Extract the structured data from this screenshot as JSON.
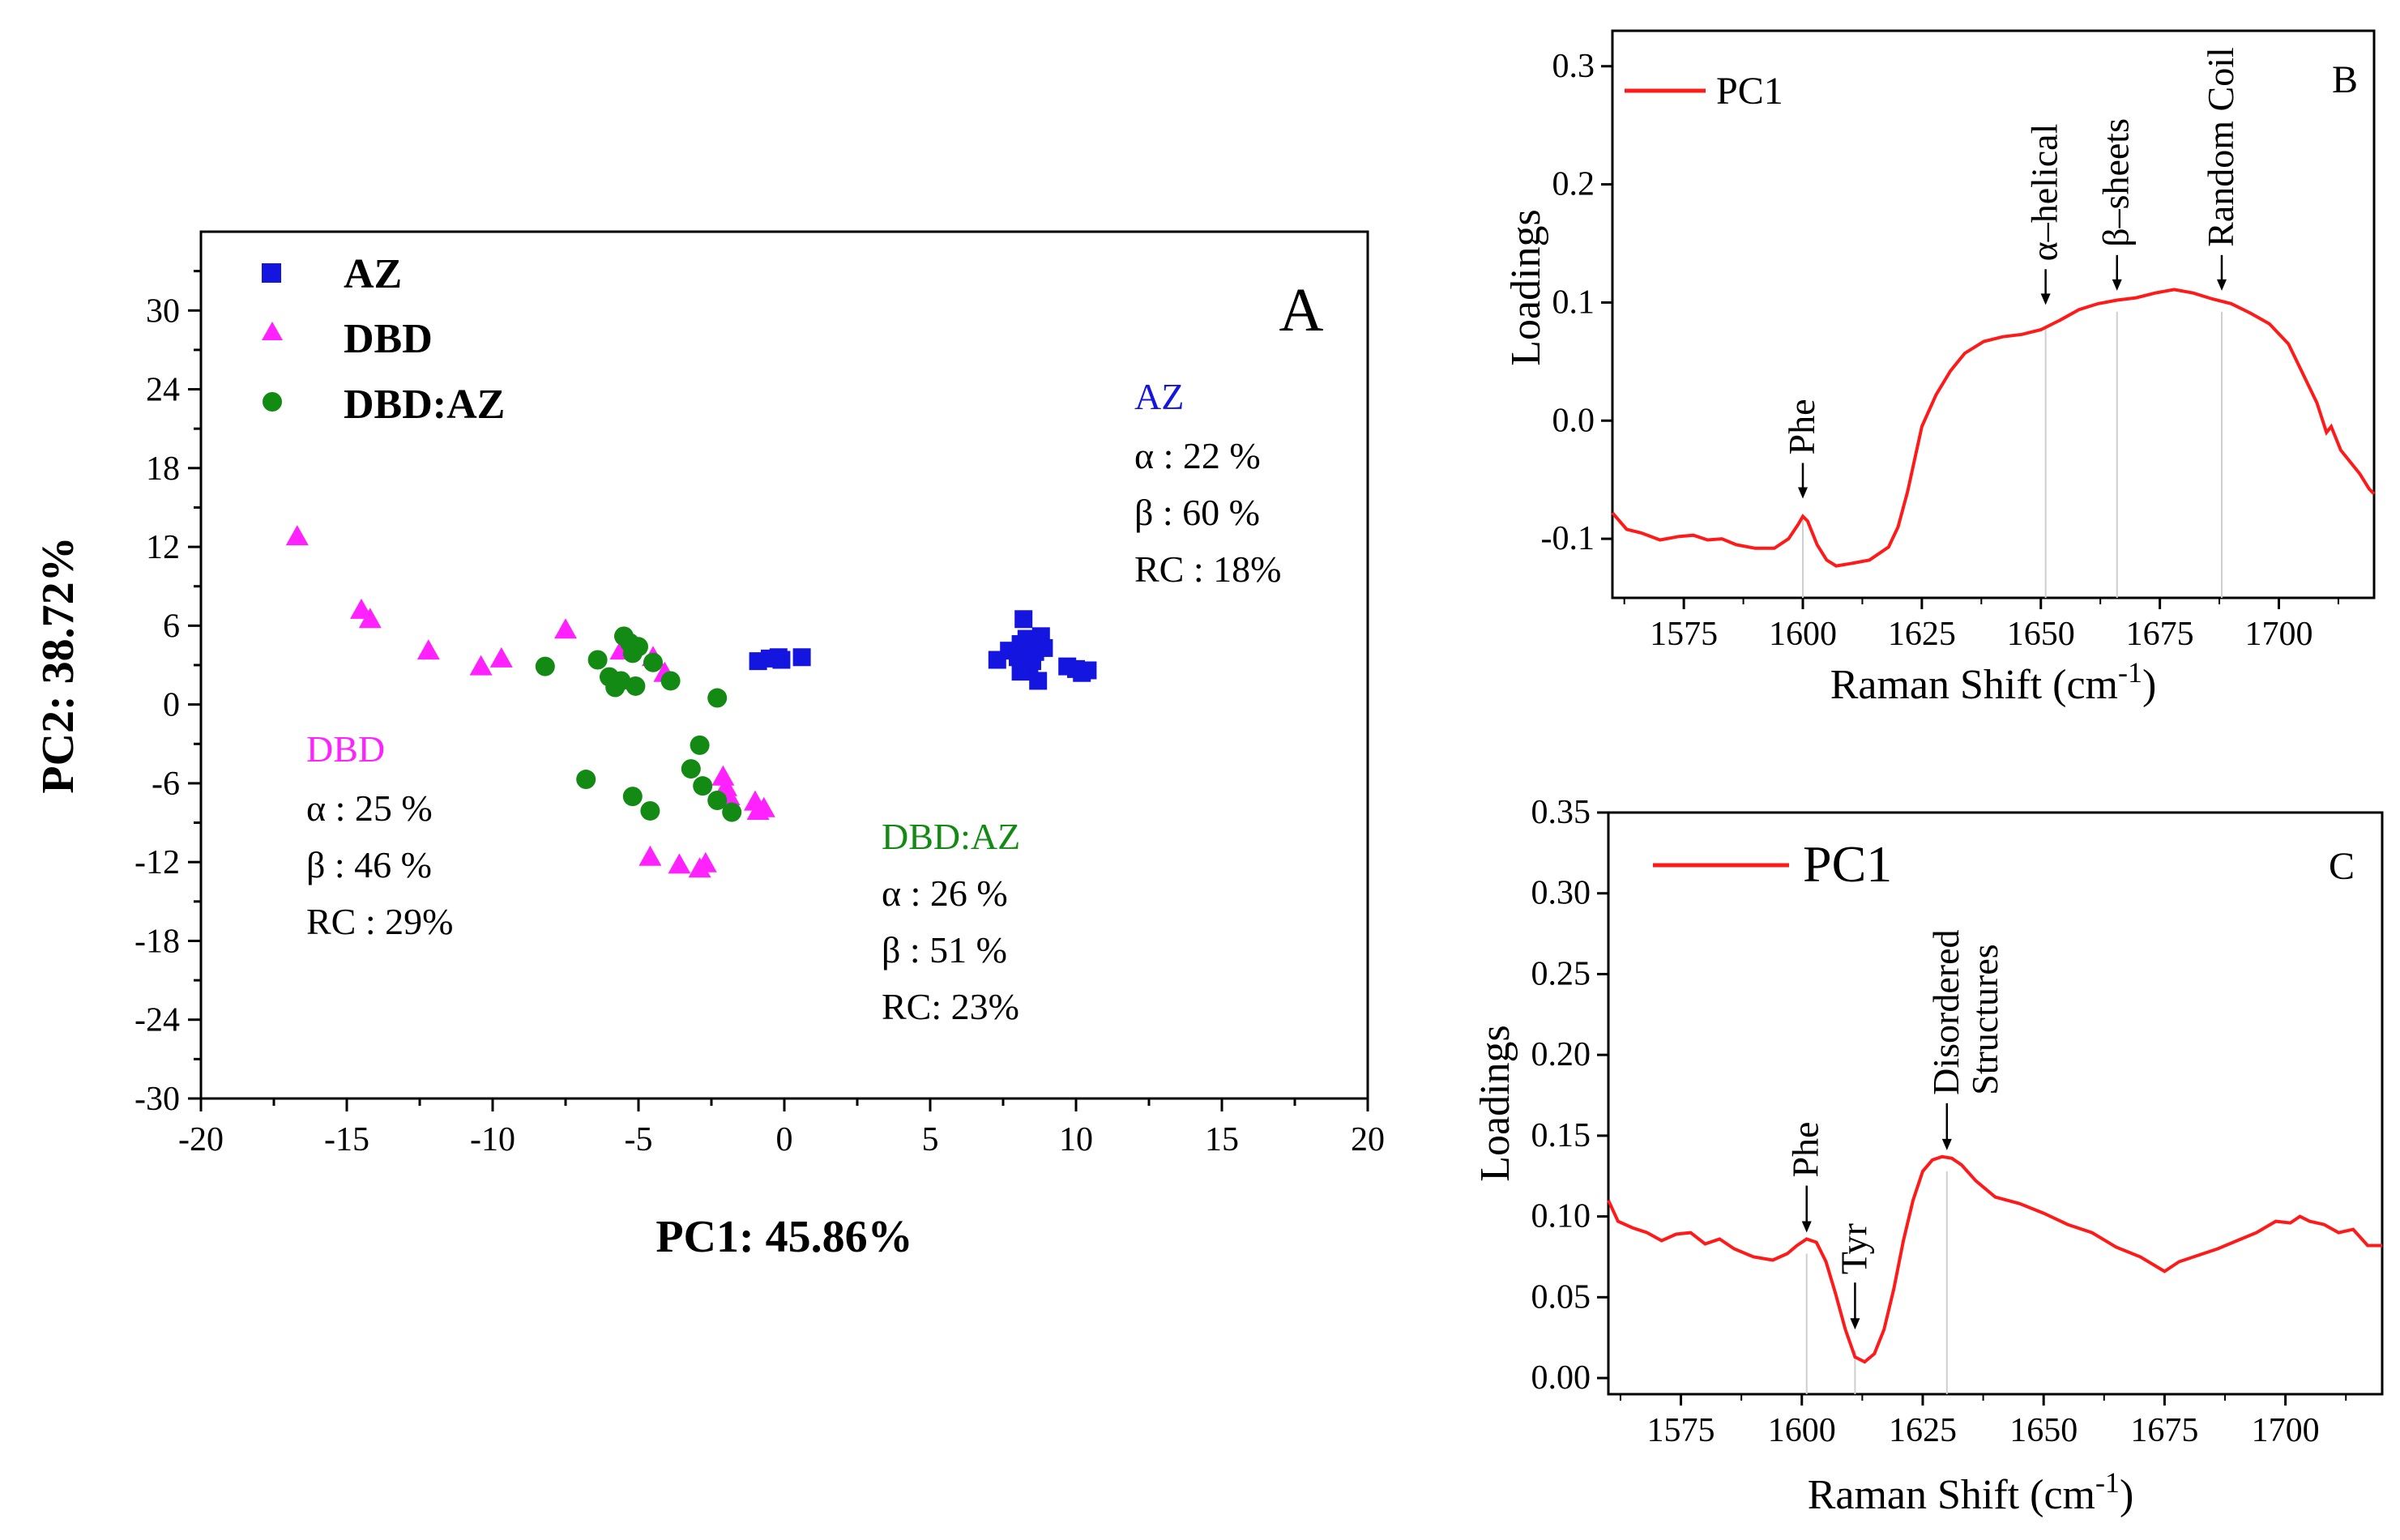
{
  "colors": {
    "AZ": "#1515e0",
    "DBD": "#ff22ff",
    "DBD:AZ": "#138a13",
    "line": "#ff1a1a"
  },
  "chart_data": [
    {
      "type": "scatter",
      "panel": "A",
      "xlabel": "PC1: 45.86%",
      "ylabel": "PC2: 38.72%",
      "xlim": [
        -20,
        20
      ],
      "ylim": [
        -30,
        36
      ],
      "xticks": [
        -20,
        -15,
        -10,
        -5,
        0,
        5,
        10,
        15,
        20
      ],
      "yticks": [
        -30,
        -24,
        -18,
        -12,
        -6,
        0,
        6,
        12,
        18,
        24,
        30
      ],
      "legend_position": "top-left",
      "series": [
        {
          "name": "AZ",
          "marker": "square",
          "points": [
            [
              -0.9,
              3.3
            ],
            [
              -0.5,
              3.5
            ],
            [
              -0.2,
              3.6
            ],
            [
              -0.1,
              3.4
            ],
            [
              0.6,
              3.6
            ],
            [
              7.3,
              3.4
            ],
            [
              7.7,
              4.1
            ],
            [
              8.0,
              3.6
            ],
            [
              8.1,
              4.6
            ],
            [
              8.2,
              6.5
            ],
            [
              8.3,
              5.0
            ],
            [
              8.4,
              2.9
            ],
            [
              8.5,
              3.3
            ],
            [
              8.6,
              4.0
            ],
            [
              8.7,
              1.8
            ],
            [
              8.8,
              5.2
            ],
            [
              8.9,
              4.3
            ],
            [
              9.7,
              2.9
            ],
            [
              10.0,
              2.7
            ],
            [
              10.2,
              2.4
            ],
            [
              10.4,
              2.6
            ],
            [
              8.1,
              2.5
            ]
          ]
        },
        {
          "name": "DBD",
          "marker": "triangle",
          "points": [
            [
              -16.7,
              12.8
            ],
            [
              -14.5,
              7.2
            ],
            [
              -14.2,
              6.5
            ],
            [
              -12.2,
              4.1
            ],
            [
              -10.4,
              2.9
            ],
            [
              -9.7,
              3.5
            ],
            [
              -7.5,
              5.7
            ],
            [
              -5.6,
              4.1
            ],
            [
              -4.5,
              3.6
            ],
            [
              -4.1,
              2.4
            ],
            [
              -4.6,
              -11.6
            ],
            [
              -3.6,
              -12.2
            ],
            [
              -2.9,
              -12.5
            ],
            [
              -2.7,
              -12.1
            ],
            [
              -2.1,
              -5.5
            ],
            [
              -2.0,
              -6.3
            ],
            [
              -1.9,
              -7.0
            ],
            [
              -1.0,
              -7.4
            ],
            [
              -0.9,
              -8.1
            ],
            [
              -0.7,
              -7.9
            ]
          ]
        },
        {
          "name": "DBD:AZ",
          "marker": "circle",
          "points": [
            [
              -8.2,
              2.9
            ],
            [
              -6.4,
              3.4
            ],
            [
              -6.0,
              2.1
            ],
            [
              -5.8,
              1.3
            ],
            [
              -5.6,
              1.8
            ],
            [
              -5.5,
              5.2
            ],
            [
              -5.3,
              4.7
            ],
            [
              -5.2,
              3.9
            ],
            [
              -5.0,
              4.4
            ],
            [
              -5.1,
              1.4
            ],
            [
              -4.5,
              3.2
            ],
            [
              -3.9,
              1.8
            ],
            [
              -2.3,
              0.5
            ],
            [
              -2.9,
              -3.1
            ],
            [
              -3.2,
              -4.9
            ],
            [
              -2.8,
              -6.2
            ],
            [
              -2.3,
              -7.3
            ],
            [
              -1.8,
              -8.2
            ],
            [
              -6.8,
              -5.7
            ],
            [
              -5.2,
              -7.0
            ],
            [
              -4.6,
              -8.1
            ]
          ]
        }
      ],
      "annotations": {
        "AZ": {
          "title": "AZ",
          "lines": [
            "α : 22 %",
            "β  : 60 %",
            "RC : 18%"
          ]
        },
        "DBD": {
          "title": "DBD",
          "lines": [
            "α : 25 %",
            "β : 46 %",
            "RC : 29%"
          ]
        },
        "DBD:AZ": {
          "title": "DBD:AZ",
          "lines": [
            "α  : 26 %",
            "β : 51 %",
            "RC: 23%"
          ]
        }
      }
    },
    {
      "type": "line",
      "panel": "B",
      "xlabel": "Raman Shift (cm",
      "xlabel_sup": "-1",
      "xlabel_end": ")",
      "ylabel": "Loadings",
      "xlim": [
        1560,
        1720
      ],
      "ylim": [
        -0.15,
        0.33
      ],
      "xticks": [
        1575,
        1600,
        1625,
        1650,
        1675,
        1700
      ],
      "yticks": [
        -0.1,
        0.0,
        0.1,
        0.2,
        0.3
      ],
      "ytick_labels": [
        "-0.1",
        "0.0",
        "0.1",
        "0.2",
        "0.3"
      ],
      "series": [
        {
          "name": "PC1",
          "x": [
            1560,
            1563,
            1566,
            1570,
            1574,
            1577,
            1580,
            1583,
            1586,
            1590,
            1594,
            1597,
            1599,
            1600,
            1601,
            1603,
            1605,
            1607,
            1610,
            1614,
            1618,
            1620,
            1622,
            1625,
            1628,
            1631,
            1634,
            1638,
            1642,
            1646,
            1650,
            1654,
            1658,
            1662,
            1666,
            1670,
            1674,
            1678,
            1682,
            1686,
            1690,
            1694,
            1698,
            1702,
            1705,
            1708,
            1710,
            1711,
            1713,
            1715,
            1717,
            1719,
            1720
          ],
          "y": [
            -0.078,
            -0.092,
            -0.095,
            -0.101,
            -0.098,
            -0.097,
            -0.101,
            -0.1,
            -0.105,
            -0.108,
            -0.108,
            -0.1,
            -0.088,
            -0.081,
            -0.085,
            -0.105,
            -0.118,
            -0.123,
            -0.121,
            -0.118,
            -0.107,
            -0.09,
            -0.06,
            -0.005,
            0.022,
            0.042,
            0.057,
            0.067,
            0.071,
            0.073,
            0.077,
            0.085,
            0.094,
            0.099,
            0.102,
            0.104,
            0.108,
            0.111,
            0.108,
            0.103,
            0.099,
            0.091,
            0.082,
            0.065,
            0.04,
            0.015,
            -0.01,
            -0.005,
            -0.025,
            -0.035,
            -0.045,
            -0.058,
            -0.062
          ]
        }
      ],
      "markers": [
        {
          "label": "α–helical",
          "x": 1651,
          "tip": 0.098
        },
        {
          "label": "β–sheets",
          "x": 1666,
          "tip": 0.11
        },
        {
          "label": "Random Coil",
          "x": 1688,
          "tip": 0.11
        },
        {
          "label": "Phe",
          "x": 1600,
          "tip": -0.066
        }
      ],
      "legend_position": "top-left",
      "panel_label": "B"
    },
    {
      "type": "line",
      "panel": "C",
      "xlabel": "Raman Shift (cm",
      "xlabel_sup": "-1",
      "xlabel_end": ")",
      "ylabel": "Loadings",
      "xlim": [
        1560,
        1720
      ],
      "ylim": [
        -0.01,
        0.35
      ],
      "xticks": [
        1575,
        1600,
        1625,
        1650,
        1675,
        1700
      ],
      "yticks": [
        0.0,
        0.05,
        0.1,
        0.15,
        0.2,
        0.25,
        0.3,
        0.35
      ],
      "ytick_labels": [
        "0.00",
        "0.05",
        "0.10",
        "0.15",
        "0.20",
        "0.25",
        "0.30",
        "0.35"
      ],
      "series": [
        {
          "name": "PC1",
          "x": [
            1560,
            1562,
            1565,
            1568,
            1571,
            1574,
            1577,
            1580,
            1583,
            1586,
            1590,
            1594,
            1597,
            1599,
            1601,
            1603,
            1605,
            1607,
            1609,
            1611,
            1613,
            1615,
            1617,
            1619,
            1621,
            1623,
            1625,
            1627,
            1629,
            1631,
            1633,
            1636,
            1640,
            1645,
            1650,
            1655,
            1660,
            1665,
            1670,
            1675,
            1678,
            1682,
            1686,
            1690,
            1694,
            1698,
            1701,
            1703,
            1705,
            1708,
            1711,
            1714,
            1717,
            1720
          ],
          "y": [
            0.11,
            0.097,
            0.093,
            0.09,
            0.085,
            0.089,
            0.09,
            0.083,
            0.086,
            0.08,
            0.075,
            0.073,
            0.077,
            0.082,
            0.086,
            0.084,
            0.072,
            0.052,
            0.03,
            0.013,
            0.01,
            0.015,
            0.03,
            0.055,
            0.085,
            0.11,
            0.128,
            0.135,
            0.137,
            0.136,
            0.132,
            0.122,
            0.112,
            0.108,
            0.102,
            0.095,
            0.09,
            0.081,
            0.075,
            0.066,
            0.072,
            0.076,
            0.08,
            0.085,
            0.09,
            0.097,
            0.096,
            0.1,
            0.097,
            0.095,
            0.09,
            0.092,
            0.082,
            0.082
          ]
        }
      ],
      "markers": [
        {
          "label": "Phe",
          "x": 1601,
          "tip": 0.09
        },
        {
          "label": "Tyr",
          "x": 1611,
          "tip": 0.03
        },
        {
          "label": "Disordered",
          "label2": "Structures",
          "x": 1630,
          "tip": 0.141
        }
      ],
      "legend_position": "top-left",
      "panel_label": "C"
    }
  ]
}
